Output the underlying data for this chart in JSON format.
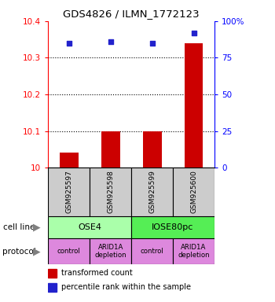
{
  "title": "GDS4826 / ILMN_1772123",
  "samples": [
    "GSM925597",
    "GSM925598",
    "GSM925599",
    "GSM925600"
  ],
  "transformed_counts": [
    10.04,
    10.1,
    10.1,
    10.34
  ],
  "percentile_ranks": [
    85,
    86,
    85,
    92
  ],
  "ylim_left": [
    10.0,
    10.4
  ],
  "ylim_right": [
    0,
    100
  ],
  "yticks_left": [
    10.0,
    10.1,
    10.2,
    10.3,
    10.4
  ],
  "ytick_labels_left": [
    "10",
    "10.1",
    "10.2",
    "10.3",
    "10.4"
  ],
  "yticks_right": [
    0,
    25,
    50,
    75,
    100
  ],
  "ytick_labels_right": [
    "0",
    "25",
    "50",
    "75",
    "100%"
  ],
  "bar_color": "#cc0000",
  "dot_color": "#2222cc",
  "cell_line_labels": [
    "OSE4",
    "IOSE80pc"
  ],
  "cell_line_colors": [
    "#aaffaa",
    "#55ee55"
  ],
  "cell_line_spans": [
    [
      0,
      2
    ],
    [
      2,
      4
    ]
  ],
  "protocol_labels": [
    "control",
    "ARID1A\ndepletion",
    "control",
    "ARID1A\ndepletion"
  ],
  "protocol_color": "#dd88dd",
  "sample_box_color": "#cccccc",
  "cell_line_label": "cell line",
  "protocol_label": "protocol",
  "legend_label_bar": "transformed count",
  "legend_label_dot": "percentile rank within the sample",
  "legend_bar_color": "#cc0000",
  "legend_dot_color": "#2222cc"
}
